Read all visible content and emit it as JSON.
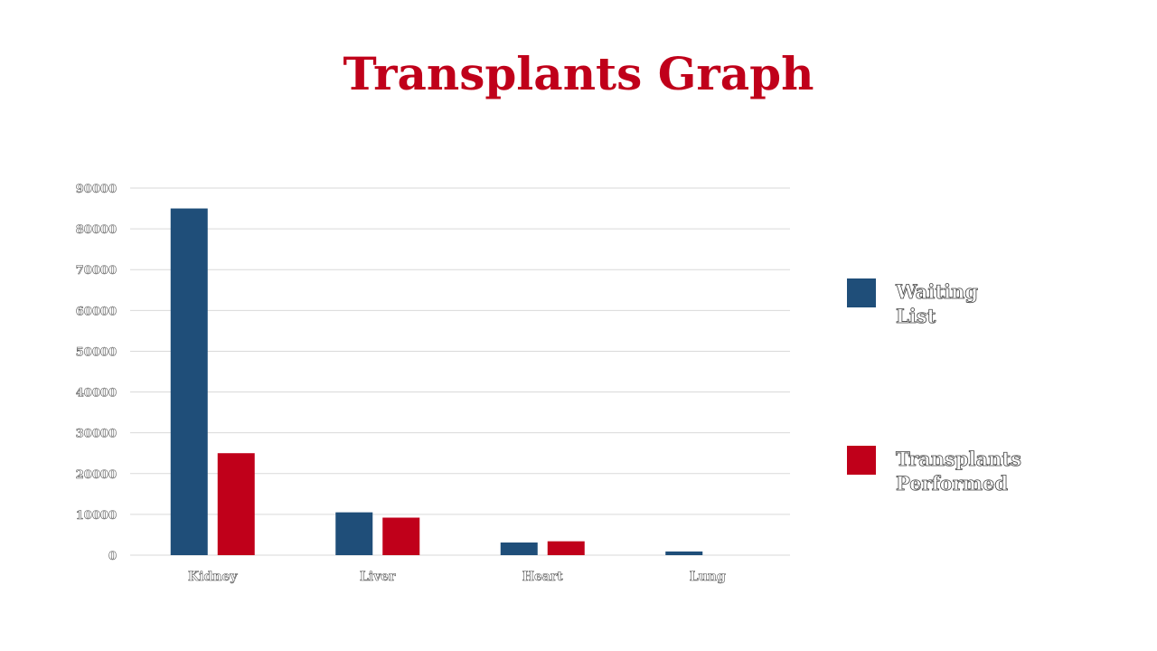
{
  "title": "Transplants Graph",
  "colors": {
    "title": "#c0001a",
    "grid": "#d9d9d9"
  },
  "chart_data": {
    "type": "bar",
    "title": "Transplants Graph",
    "xlabel": "",
    "ylabel": "",
    "categories": [
      "Kidney",
      "Liver",
      "Heart",
      "Lung"
    ],
    "series": [
      {
        "name": "Waiting List",
        "color": "#1f4e79",
        "values": [
          85000,
          10500,
          3100,
          900
        ]
      },
      {
        "name": "Transplants Performed",
        "color": "#c0001a",
        "values": [
          25000,
          9200,
          3400,
          0
        ]
      }
    ],
    "ylim": [
      0,
      90000
    ],
    "yticks": [
      0,
      10000,
      20000,
      30000,
      40000,
      50000,
      60000,
      70000,
      80000,
      90000
    ],
    "grid": true,
    "legend_position": "right"
  }
}
